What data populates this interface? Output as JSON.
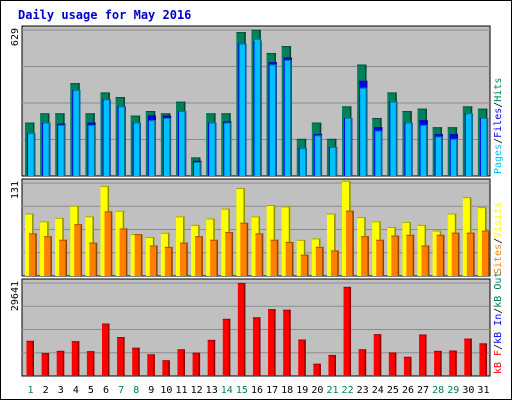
{
  "chart_data": {
    "type": "bar",
    "title": "Daily usage for May 2016",
    "categories": [
      "1",
      "2",
      "3",
      "4",
      "5",
      "6",
      "7",
      "8",
      "9",
      "10",
      "11",
      "12",
      "13",
      "14",
      "15",
      "16",
      "17",
      "18",
      "19",
      "20",
      "21",
      "22",
      "23",
      "24",
      "25",
      "26",
      "27",
      "28",
      "29",
      "30",
      "31"
    ],
    "weekend_days": [
      "1",
      "7",
      "8",
      "14",
      "15",
      "21",
      "22",
      "28",
      "29"
    ],
    "colors": {
      "title": "#0000CC",
      "frame": "#000000",
      "plot_bg": "#C0C0C0",
      "grid": "#8C8C8C",
      "weekday_label": "#000000",
      "weekend_label": "#00805C",
      "hits": "#00805C",
      "files": "#0000FF",
      "pages": "#00C0FF",
      "visits": "#FFFF00",
      "sites": "#FF8000",
      "kbf": "#FF0000",
      "kb_in": "#0000FF",
      "kb_out": "#00805C"
    },
    "panels": [
      {
        "id": "hits-files-pages",
        "ymax_label": "629",
        "ymax": 629,
        "legend": [
          {
            "label": "Pages",
            "color": "#00C0FF"
          },
          {
            "label": "Files",
            "color": "#0000FF"
          },
          {
            "label": "Hits",
            "color": "#00805C"
          }
        ],
        "series": [
          {
            "name": "Hits",
            "values": [
              230,
              270,
              270,
              400,
              270,
              360,
              340,
              260,
              280,
              270,
              320,
              80,
              270,
              270,
              620,
              630,
              530,
              560,
              160,
              230,
              160,
              300,
              480,
              250,
              360,
              280,
              290,
              210,
              210,
              300,
              290
            ]
          },
          {
            "name": "Files",
            "values": [
              185,
              230,
              225,
              370,
              230,
              330,
              300,
              230,
              260,
              260,
              280,
              65,
              230,
              235,
              570,
              580,
              490,
              510,
              120,
              180,
              125,
              250,
              410,
              210,
              320,
              230,
              240,
              180,
              180,
              270,
              250
            ]
          },
          {
            "name": "Pages",
            "values": [
              185,
              230,
              220,
              370,
              220,
              330,
              300,
              230,
              240,
              250,
              280,
              60,
              230,
              230,
              570,
              590,
              480,
              500,
              120,
              175,
              125,
              250,
              380,
              195,
              320,
              230,
              220,
              170,
              160,
              270,
              250
            ]
          }
        ]
      },
      {
        "id": "visits-sites",
        "ymax_label": "131",
        "ymax": 131,
        "legend": [
          {
            "label": "Sites",
            "color": "#FF8000"
          },
          {
            "label": "Visits",
            "color": "#FFFF00"
          }
        ],
        "series": [
          {
            "name": "Visits",
            "values": [
              88,
              77,
              82,
              99,
              84,
              127,
              92,
              59,
              55,
              61,
              84,
              72,
              81,
              95,
              124,
              84,
              100,
              98,
              51,
              53,
              88,
              134,
              83,
              77,
              69,
              76,
              72,
              64,
              88,
              111,
              97
            ]
          },
          {
            "name": "Sites",
            "values": [
              60,
              56,
              51,
              73,
              47,
              91,
              67,
              59,
              43,
              41,
              47,
              56,
              51,
              62,
              75,
              60,
              51,
              48,
              30,
              41,
              36,
              92,
              56,
              51,
              57,
              58,
              43,
              58,
              61,
              61,
              64
            ]
          }
        ]
      },
      {
        "id": "kbf",
        "ymax_label": "29641",
        "ymax": 29641,
        "legend": [
          {
            "label": "kB F",
            "color": "#FF0000"
          },
          {
            "label": "kB In",
            "color": "#0000FF"
          },
          {
            "label": "kB Out",
            "color": "#00805C"
          }
        ],
        "series": [
          {
            "name": "kB F",
            "values": [
              11200,
              7300,
              8000,
              11100,
              7900,
              16700,
              12400,
              9000,
              6900,
              5000,
              8500,
              7400,
              11500,
              18200,
              29641,
              18700,
              21300,
              21100,
              11600,
              3900,
              6700,
              28400,
              8500,
              13300,
              7500,
              6100,
              13200,
              8000,
              8100,
              11900,
              10400
            ]
          }
        ]
      }
    ]
  }
}
